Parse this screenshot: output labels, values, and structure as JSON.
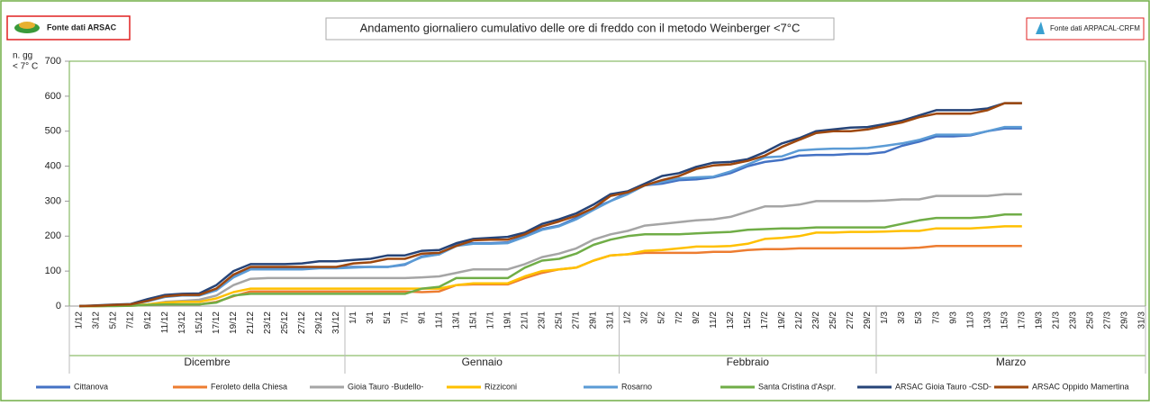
{
  "header": {
    "left_logo": "Fonte dati ARSAC",
    "right_logo": "Fonte dati ARPACAL-CRFM"
  },
  "chart_data": {
    "type": "line",
    "title": "Andamento giornaliero cumulativo delle ore di freddo con il metodo Weinberger <7°C",
    "y_label_lines": [
      "n. gg",
      "< 7° C"
    ],
    "categories": [
      "1/12",
      "3/12",
      "5/12",
      "7/12",
      "9/12",
      "11/12",
      "13/12",
      "15/12",
      "17/12",
      "19/12",
      "21/12",
      "23/12",
      "25/12",
      "27/12",
      "29/12",
      "31/12",
      "1/1",
      "3/1",
      "5/1",
      "7/1",
      "9/1",
      "11/1",
      "13/1",
      "15/1",
      "17/1",
      "19/1",
      "21/1",
      "23/1",
      "25/1",
      "27/1",
      "29/1",
      "31/1",
      "1/2",
      "3/2",
      "5/2",
      "7/2",
      "9/2",
      "11/2",
      "13/2",
      "15/2",
      "17/2",
      "19/2",
      "21/2",
      "23/2",
      "25/2",
      "27/2",
      "29/2",
      "1/3",
      "3/3",
      "5/3",
      "7/3",
      "9/3",
      "11/3",
      "13/3",
      "15/3",
      "17/3",
      "19/3",
      "21/3",
      "23/3",
      "25/3",
      "27/3",
      "29/3",
      "31/3"
    ],
    "month_groups": [
      "Dicembre",
      "Gennaio",
      "Febbraio",
      "Marzo"
    ],
    "ylim": [
      0,
      700
    ],
    "yticks": [
      0,
      100,
      200,
      300,
      400,
      500,
      600,
      700
    ],
    "series": [
      {
        "name": "Cittanova",
        "color": "#4472c4",
        "values": [
          0,
          1,
          3,
          5,
          15,
          28,
          32,
          32,
          48,
          85,
          108,
          108,
          108,
          108,
          110,
          110,
          112,
          112,
          112,
          118,
          142,
          148,
          175,
          180,
          180,
          182,
          200,
          220,
          230,
          252,
          280,
          300,
          325,
          345,
          350,
          360,
          362,
          368,
          380,
          400,
          412,
          418,
          430,
          432,
          432,
          435,
          435,
          440,
          458,
          470,
          485,
          485,
          488,
          500,
          508,
          508,
          null,
          null,
          null,
          null,
          null,
          null,
          null
        ]
      },
      {
        "name": "Feroleto della Chiesa",
        "color": "#ed7d31",
        "values": [
          0,
          0,
          1,
          1,
          3,
          5,
          5,
          5,
          12,
          28,
          42,
          42,
          42,
          42,
          42,
          42,
          42,
          42,
          42,
          42,
          40,
          42,
          60,
          62,
          62,
          62,
          80,
          95,
          105,
          110,
          130,
          145,
          148,
          152,
          152,
          152,
          152,
          155,
          155,
          160,
          163,
          163,
          165,
          165,
          165,
          165,
          165,
          165,
          165,
          167,
          172,
          172,
          172,
          172,
          172,
          172,
          null,
          null,
          null,
          null,
          null,
          null,
          null
        ]
      },
      {
        "name": "Gioia Tauro -Budello-",
        "color": "#a5a5a5",
        "values": [
          0,
          0,
          1,
          2,
          5,
          12,
          15,
          18,
          30,
          60,
          78,
          80,
          80,
          80,
          80,
          80,
          80,
          80,
          80,
          80,
          82,
          85,
          95,
          105,
          105,
          105,
          120,
          140,
          150,
          165,
          190,
          205,
          215,
          230,
          235,
          240,
          245,
          248,
          255,
          270,
          285,
          285,
          290,
          300,
          300,
          300,
          300,
          302,
          305,
          305,
          315,
          315,
          315,
          315,
          320,
          320,
          null,
          null,
          null,
          null,
          null,
          null,
          null
        ]
      },
      {
        "name": "Rizziconi",
        "color": "#ffc000",
        "values": [
          0,
          0,
          1,
          2,
          5,
          10,
          12,
          12,
          22,
          40,
          50,
          50,
          50,
          50,
          50,
          50,
          50,
          50,
          50,
          50,
          50,
          50,
          60,
          65,
          65,
          65,
          85,
          100,
          105,
          110,
          130,
          145,
          148,
          158,
          160,
          165,
          170,
          170,
          172,
          178,
          192,
          195,
          200,
          210,
          210,
          212,
          212,
          213,
          215,
          215,
          222,
          222,
          222,
          225,
          228,
          228,
          null,
          null,
          null,
          null,
          null,
          null,
          null
        ]
      },
      {
        "name": "Rosarno",
        "color": "#5b9bd5",
        "values": [
          0,
          1,
          3,
          5,
          14,
          26,
          30,
          30,
          45,
          82,
          105,
          105,
          105,
          105,
          108,
          108,
          110,
          112,
          112,
          120,
          140,
          148,
          172,
          178,
          178,
          180,
          198,
          218,
          228,
          248,
          275,
          300,
          320,
          345,
          355,
          365,
          368,
          370,
          385,
          405,
          425,
          428,
          445,
          448,
          450,
          450,
          452,
          458,
          465,
          475,
          490,
          490,
          490,
          500,
          512,
          512,
          null,
          null,
          null,
          null,
          null,
          null,
          null
        ]
      },
      {
        "name": "Santa Cristina d'Aspr.",
        "color": "#70ad47",
        "values": [
          0,
          0,
          0,
          1,
          3,
          5,
          5,
          5,
          10,
          30,
          35,
          35,
          35,
          35,
          35,
          35,
          35,
          35,
          35,
          35,
          50,
          55,
          80,
          80,
          80,
          80,
          110,
          130,
          135,
          150,
          175,
          190,
          200,
          205,
          205,
          205,
          208,
          210,
          212,
          218,
          220,
          222,
          222,
          225,
          225,
          225,
          225,
          225,
          235,
          245,
          252,
          252,
          252,
          255,
          262,
          262,
          null,
          null,
          null,
          null,
          null,
          null,
          null
        ]
      },
      {
        "name": "ARSAC Gioia Tauro -CSD-",
        "color": "#264478",
        "values": [
          0,
          2,
          4,
          6,
          20,
          32,
          35,
          36,
          60,
          100,
          120,
          120,
          120,
          122,
          128,
          128,
          132,
          135,
          145,
          145,
          158,
          160,
          180,
          192,
          195,
          198,
          210,
          235,
          248,
          265,
          290,
          320,
          328,
          350,
          372,
          380,
          398,
          410,
          412,
          420,
          440,
          465,
          480,
          500,
          505,
          510,
          512,
          520,
          530,
          545,
          560,
          560,
          560,
          565,
          580,
          580,
          null,
          null,
          null,
          null,
          null,
          null,
          null
        ]
      },
      {
        "name": "ARSAC Oppido Mamertina",
        "color": "#9e480e",
        "values": [
          0,
          1,
          3,
          5,
          15,
          28,
          32,
          32,
          50,
          90,
          112,
          112,
          112,
          112,
          112,
          112,
          122,
          125,
          135,
          135,
          150,
          152,
          172,
          188,
          190,
          190,
          205,
          228,
          242,
          258,
          280,
          315,
          325,
          345,
          360,
          372,
          392,
          402,
          405,
          415,
          430,
          455,
          475,
          495,
          500,
          500,
          505,
          515,
          525,
          540,
          550,
          550,
          550,
          560,
          580,
          580,
          null,
          null,
          null,
          null,
          null,
          null,
          null
        ]
      }
    ]
  }
}
